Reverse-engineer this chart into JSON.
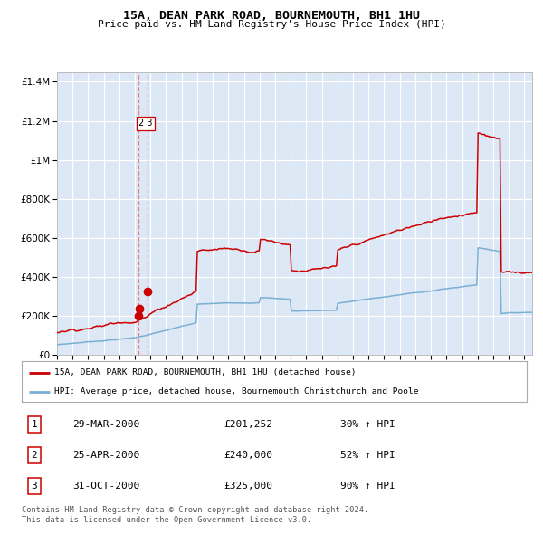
{
  "title": "15A, DEAN PARK ROAD, BOURNEMOUTH, BH1 1HU",
  "subtitle": "Price paid vs. HM Land Registry's House Price Index (HPI)",
  "background_color": "#dce8f5",
  "plot_bg_color": "#dce8f5",
  "red_line_color": "#cc0000",
  "blue_line_color": "#7bafd4",
  "sale_marker_color": "#cc0000",
  "dashed_line_color": "#e88080",
  "grid_color": "#ffffff",
  "legend_label_red": "15A, DEAN PARK ROAD, BOURNEMOUTH, BH1 1HU (detached house)",
  "legend_label_blue": "HPI: Average price, detached house, Bournemouth Christchurch and Poole",
  "footer_text": "Contains HM Land Registry data © Crown copyright and database right 2024.\nThis data is licensed under the Open Government Licence v3.0.",
  "sales": [
    {
      "num": 1,
      "date": "29-MAR-2000",
      "price": 201252,
      "pct": "30%",
      "dir": "↑"
    },
    {
      "num": 2,
      "date": "25-APR-2000",
      "price": 240000,
      "pct": "52%",
      "dir": "↑"
    },
    {
      "num": 3,
      "date": "31-OCT-2000",
      "price": 325000,
      "pct": "90%",
      "dir": "↑"
    }
  ],
  "sale_dates_decimal": [
    2000.22,
    2000.3,
    2000.83
  ],
  "sale_prices": [
    201252,
    240000,
    325000
  ],
  "ylim": [
    0,
    1450000
  ],
  "xlim_start": 1995.0,
  "xlim_end": 2025.5,
  "yticks": [
    0,
    200000,
    400000,
    600000,
    800000,
    1000000,
    1200000,
    1400000
  ]
}
